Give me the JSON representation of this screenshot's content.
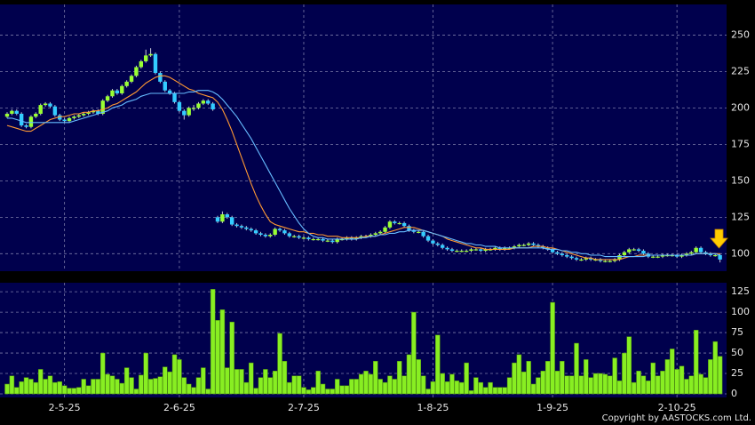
{
  "chart_data": {
    "type": "candlestick",
    "categories": [
      null,
      null,
      null,
      null,
      null,
      null,
      null,
      null,
      null,
      null,
      null,
      null,
      "2-5-25",
      null,
      null,
      null,
      null,
      null,
      null,
      null,
      null,
      null,
      null,
      null,
      null,
      null,
      null,
      null,
      null,
      null,
      null,
      null,
      null,
      null,
      null,
      null,
      "2-6-25",
      null,
      null,
      null,
      null,
      null,
      null,
      null,
      null,
      null,
      null,
      null,
      null,
      null,
      null,
      null,
      null,
      null,
      null,
      null,
      null,
      null,
      null,
      null,
      null,
      null,
      "2-7-25",
      null,
      null,
      null,
      null,
      null,
      null,
      null,
      null,
      null,
      null,
      null,
      null,
      null,
      null,
      null,
      null,
      null,
      null,
      null,
      null,
      null,
      null,
      null,
      null,
      null,
      null,
      "1-8-25",
      null,
      null,
      null,
      null,
      null,
      null,
      null,
      null,
      null,
      null,
      null,
      null,
      null,
      null,
      null,
      null,
      null,
      null,
      null,
      null,
      null,
      null,
      null,
      null,
      "1-9-25",
      null,
      null,
      null,
      null,
      null,
      null,
      null,
      null,
      null,
      null,
      null,
      null,
      null,
      null,
      null,
      null,
      null,
      null,
      null,
      null,
      null,
      null,
      null,
      null,
      null,
      "2-10-25",
      null,
      null,
      null,
      null,
      null,
      null,
      null,
      null,
      null
    ],
    "open": [
      194,
      196,
      198,
      196,
      188,
      187,
      194,
      196,
      202,
      203,
      201,
      195,
      192,
      191,
      193,
      194,
      195,
      196,
      197,
      198,
      196,
      205,
      208,
      212,
      210,
      215,
      218,
      222,
      228,
      232,
      236,
      237,
      224,
      218,
      212,
      210,
      204,
      198,
      195,
      200,
      200,
      203,
      205,
      203,
      125,
      122,
      127,
      125,
      120,
      119,
      118,
      117,
      116,
      114,
      113,
      112,
      113,
      117,
      116,
      114,
      112,
      112,
      111,
      111,
      110,
      110,
      110,
      109,
      109,
      108,
      110,
      110,
      111,
      110,
      111,
      112,
      112,
      113,
      114,
      115,
      118,
      122,
      121,
      121,
      119,
      116,
      115,
      115,
      112,
      109,
      107,
      106,
      104,
      103,
      102,
      102,
      102,
      102,
      103,
      103,
      102,
      103,
      103,
      104,
      103,
      104,
      104,
      105,
      106,
      106,
      107,
      106,
      105,
      104,
      103,
      101,
      100,
      99,
      98,
      97,
      96,
      96,
      97,
      96,
      96,
      95,
      95,
      95,
      96,
      99,
      101,
      103,
      103,
      102,
      100,
      98,
      98,
      98,
      99,
      99,
      99,
      98,
      99,
      100,
      101,
      104,
      101,
      100,
      99,
      99
    ],
    "high": [
      197,
      199,
      199,
      197,
      189,
      195,
      197,
      203,
      204,
      204,
      202,
      196,
      193,
      194,
      195,
      196,
      197,
      198,
      199,
      199,
      206,
      209,
      213,
      213,
      216,
      219,
      223,
      229,
      233,
      240,
      241,
      238,
      225,
      219,
      213,
      211,
      205,
      199,
      201,
      202,
      204,
      206,
      206,
      204,
      126,
      129,
      128,
      126,
      121,
      120,
      119,
      118,
      117,
      115,
      114,
      114,
      118,
      118,
      117,
      115,
      113,
      113,
      112,
      112,
      111,
      111,
      111,
      110,
      110,
      111,
      111,
      112,
      112,
      112,
      113,
      113,
      114,
      115,
      116,
      119,
      123,
      123,
      122,
      122,
      120,
      117,
      116,
      116,
      113,
      110,
      108,
      107,
      105,
      104,
      103,
      103,
      103,
      104,
      104,
      104,
      104,
      104,
      105,
      105,
      105,
      105,
      106,
      107,
      107,
      108,
      108,
      107,
      106,
      105,
      104,
      102,
      101,
      100,
      99,
      98,
      97,
      98,
      98,
      97,
      97,
      96,
      96,
      97,
      100,
      102,
      104,
      104,
      104,
      103,
      101,
      99,
      99,
      100,
      100,
      100,
      100,
      100,
      101,
      102,
      105,
      105,
      102,
      101,
      100,
      100
    ],
    "low": [
      193,
      195,
      195,
      187,
      186,
      186,
      193,
      195,
      201,
      200,
      194,
      191,
      190,
      190,
      192,
      193,
      194,
      195,
      196,
      195,
      195,
      204,
      207,
      209,
      209,
      214,
      217,
      221,
      227,
      231,
      235,
      223,
      217,
      211,
      209,
      203,
      197,
      192,
      194,
      198,
      199,
      202,
      202,
      198,
      121,
      121,
      124,
      119,
      118,
      117,
      116,
      115,
      113,
      112,
      111,
      111,
      112,
      115,
      113,
      111,
      111,
      110,
      110,
      109,
      109,
      109,
      108,
      108,
      107,
      107,
      109,
      109,
      109,
      109,
      110,
      111,
      111,
      112,
      113,
      114,
      117,
      120,
      120,
      118,
      115,
      114,
      114,
      111,
      108,
      106,
      105,
      103,
      102,
      101,
      101,
      101,
      101,
      101,
      102,
      101,
      101,
      102,
      102,
      102,
      102,
      103,
      103,
      104,
      105,
      105,
      105,
      104,
      103,
      102,
      100,
      99,
      98,
      97,
      96,
      95,
      95,
      95,
      95,
      95,
      94,
      94,
      94,
      94,
      95,
      98,
      100,
      102,
      101,
      99,
      97,
      97,
      97,
      97,
      98,
      98,
      97,
      97,
      98,
      99,
      100,
      100,
      99,
      98,
      98,
      94
    ],
    "close": [
      196,
      198,
      196,
      188,
      187,
      194,
      196,
      202,
      203,
      201,
      195,
      192,
      191,
      193,
      194,
      195,
      196,
      197,
      198,
      196,
      205,
      208,
      212,
      210,
      215,
      218,
      222,
      228,
      232,
      236,
      237,
      224,
      218,
      212,
      210,
      204,
      198,
      195,
      200,
      200,
      203,
      205,
      203,
      199,
      122,
      127,
      125,
      120,
      119,
      118,
      117,
      116,
      114,
      113,
      112,
      113,
      117,
      116,
      114,
      112,
      112,
      111,
      111,
      110,
      110,
      110,
      109,
      109,
      108,
      110,
      110,
      111,
      110,
      111,
      112,
      112,
      113,
      114,
      115,
      118,
      122,
      121,
      121,
      119,
      116,
      115,
      115,
      112,
      109,
      107,
      106,
      104,
      103,
      102,
      102,
      102,
      102,
      103,
      103,
      102,
      103,
      103,
      104,
      103,
      104,
      104,
      105,
      106,
      106,
      107,
      106,
      105,
      104,
      103,
      101,
      100,
      99,
      98,
      97,
      96,
      96,
      97,
      96,
      96,
      95,
      95,
      95,
      96,
      99,
      101,
      103,
      103,
      102,
      100,
      98,
      98,
      98,
      99,
      99,
      99,
      98,
      99,
      100,
      101,
      104,
      101,
      100,
      99,
      99,
      96
    ],
    "up_color": "#99ff33",
    "down_color": "#33ccff",
    "lines": [
      {
        "color": "#ff9933",
        "values": [
          188,
          187,
          186,
          185,
          184,
          184,
          186,
          188,
          190,
          192,
          193,
          194,
          194,
          195,
          196,
          196,
          197,
          197,
          198,
          198,
          199,
          200,
          202,
          203,
          205,
          207,
          209,
          211,
          214,
          217,
          219,
          221,
          222,
          222,
          221,
          219,
          217,
          215,
          213,
          212,
          210,
          209,
          208,
          207,
          204,
          199,
          192,
          184,
          175,
          166,
          157,
          148,
          140,
          133,
          127,
          122,
          120,
          119,
          118,
          117,
          116,
          115,
          115,
          114,
          114,
          113,
          113,
          112,
          112,
          112,
          111,
          111,
          111,
          111,
          111,
          112,
          112,
          112,
          113,
          114,
          115,
          116,
          117,
          118,
          118,
          118,
          117,
          116,
          115,
          114,
          113,
          112,
          110,
          109,
          108,
          107,
          106,
          105,
          104,
          104,
          103,
          103,
          103,
          103,
          103,
          103,
          104,
          104,
          104,
          104,
          105,
          105,
          105,
          104,
          104,
          103,
          102,
          101,
          100,
          99,
          98,
          97,
          97,
          96,
          96,
          96,
          96,
          96,
          96,
          97,
          98,
          98,
          99,
          99,
          99,
          99,
          99,
          99,
          99,
          99,
          99,
          99,
          99,
          99,
          100,
          100,
          100,
          100,
          100,
          100
        ]
      },
      {
        "color": "#66bbff",
        "values": [
          193,
          193,
          192,
          191,
          190,
          190,
          190,
          190,
          190,
          190,
          190,
          190,
          190,
          190,
          191,
          192,
          193,
          194,
          195,
          196,
          197,
          198,
          200,
          201,
          202,
          204,
          205,
          206,
          208,
          209,
          210,
          210,
          210,
          210,
          210,
          210,
          210,
          210,
          211,
          211,
          212,
          212,
          212,
          211,
          209,
          206,
          202,
          198,
          194,
          189,
          184,
          179,
          173,
          167,
          161,
          155,
          149,
          143,
          137,
          131,
          126,
          121,
          117,
          114,
          112,
          111,
          111,
          110,
          110,
          110,
          110,
          110,
          110,
          110,
          111,
          111,
          112,
          112,
          113,
          113,
          114,
          114,
          115,
          115,
          116,
          116,
          116,
          116,
          115,
          114,
          113,
          112,
          111,
          110,
          109,
          108,
          107,
          107,
          106,
          106,
          105,
          105,
          105,
          104,
          104,
          104,
          104,
          104,
          104,
          104,
          104,
          104,
          104,
          103,
          103,
          103,
          102,
          102,
          101,
          101,
          100,
          100,
          99,
          99,
          99,
          98,
          98,
          98,
          98,
          98,
          98,
          98,
          98,
          98,
          99,
          99,
          99,
          99,
          99,
          99,
          99,
          99,
          99,
          99,
          100,
          100,
          100,
          100,
          100,
          99
        ]
      }
    ],
    "ylim": [
      88,
      271
    ],
    "yticks": [
      100,
      125,
      150,
      175,
      200,
      225,
      250
    ],
    "grid": true,
    "volume": {
      "type": "bar",
      "color": "#88ee22",
      "values": [
        12,
        22,
        8,
        15,
        20,
        18,
        14,
        30,
        18,
        22,
        14,
        15,
        10,
        7,
        7,
        8,
        18,
        10,
        18,
        18,
        50,
        24,
        22,
        18,
        13,
        32,
        20,
        6,
        23,
        50,
        18,
        19,
        21,
        33,
        27,
        48,
        42,
        20,
        12,
        8,
        20,
        32,
        6,
        128,
        90,
        103,
        32,
        88,
        30,
        30,
        14,
        38,
        7,
        20,
        30,
        20,
        28,
        74,
        40,
        14,
        22,
        22,
        8,
        5,
        8,
        28,
        12,
        6,
        6,
        18,
        10,
        10,
        18,
        18,
        24,
        28,
        24,
        40,
        18,
        14,
        22,
        18,
        40,
        22,
        48,
        100,
        42,
        22,
        6,
        15,
        72,
        25,
        15,
        24,
        16,
        14,
        38,
        4,
        20,
        14,
        8,
        14,
        8,
        8,
        8,
        20,
        38,
        48,
        27,
        40,
        12,
        20,
        28,
        40,
        112,
        28,
        40,
        22,
        22,
        62,
        22,
        42,
        20,
        25,
        25,
        24,
        22,
        44,
        16,
        50,
        70,
        14,
        28,
        22,
        16,
        38,
        22,
        28,
        42,
        55,
        30,
        34,
        18,
        22,
        78,
        24,
        20,
        42,
        64,
        46
      ],
      "ylim": [
        0,
        136
      ],
      "yticks": [
        0,
        25,
        50,
        75,
        100,
        125
      ]
    },
    "source": "Copyright by AASTOCKS.com Ltd."
  }
}
